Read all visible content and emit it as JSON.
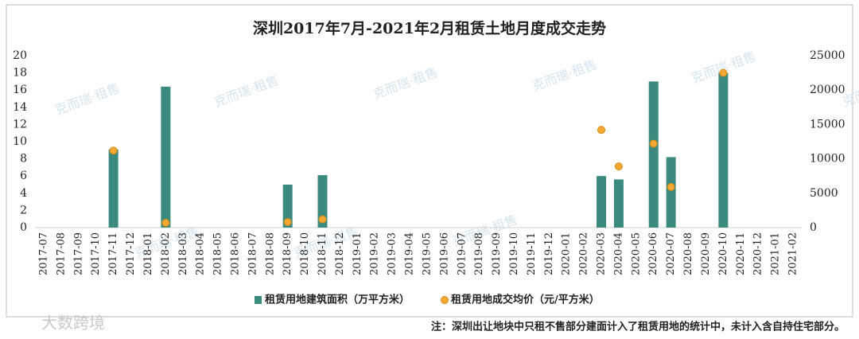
{
  "chart_data": {
    "type": "bar",
    "title": "深圳2017年7月-2021年2月租赁土地月度成交走势",
    "categories": [
      "2017-07",
      "2017-08",
      "2017-09",
      "2017-10",
      "2017-11",
      "2017-12",
      "2018-01",
      "2018-02",
      "2018-03",
      "2018-04",
      "2018-05",
      "2018-06",
      "2018-07",
      "2018-08",
      "2018-09",
      "2018-10",
      "2018-11",
      "2018-12",
      "2019-01",
      "2019-02",
      "2019-03",
      "2019-04",
      "2019-05",
      "2019-06",
      "2019-07",
      "2019-08",
      "2019-09",
      "2019-10",
      "2019-11",
      "2019-12",
      "2020-01",
      "2020-02",
      "2020-03",
      "2020-04",
      "2020-05",
      "2020-06",
      "2020-07",
      "2020-08",
      "2020-09",
      "2020-10",
      "2020-11",
      "2020-12",
      "2021-01",
      "2021-02"
    ],
    "series": [
      {
        "name": "租赁用地建筑面积（万平方米）",
        "color": "#3a8a80",
        "values": [
          null,
          null,
          null,
          null,
          9.1,
          null,
          null,
          16.4,
          null,
          null,
          null,
          null,
          null,
          null,
          5.0,
          null,
          6.1,
          null,
          null,
          null,
          null,
          null,
          null,
          null,
          null,
          null,
          null,
          null,
          null,
          null,
          null,
          null,
          6.0,
          5.6,
          null,
          17.0,
          8.2,
          null,
          null,
          18.0,
          null,
          null,
          null,
          null
        ]
      },
      {
        "name": "租赁用地成交均价（元/平方米）",
        "color": "#f5a833",
        "axis": "y2",
        "values": [
          null,
          null,
          null,
          null,
          11200,
          null,
          null,
          700,
          null,
          null,
          null,
          null,
          null,
          null,
          800,
          null,
          1200,
          null,
          null,
          null,
          null,
          null,
          null,
          null,
          null,
          null,
          null,
          null,
          null,
          null,
          null,
          null,
          14200,
          8900,
          null,
          12200,
          5900,
          null,
          null,
          22500,
          null,
          null,
          null,
          null
        ]
      }
    ],
    "ylim": [
      0,
      20
    ],
    "yticks": [
      0,
      2,
      4,
      6,
      8,
      10,
      12,
      14,
      16,
      18,
      20
    ],
    "y2lim": [
      0,
      25000
    ],
    "y2ticks": [
      0,
      5000,
      10000,
      15000,
      20000,
      25000
    ],
    "note": "注：深圳出让地块中只租不售部分建面计入了租赁用地的统计中，未计入含自持住宅部分。",
    "watermark": "克而瑞·租售",
    "logo": "大数跨境"
  }
}
